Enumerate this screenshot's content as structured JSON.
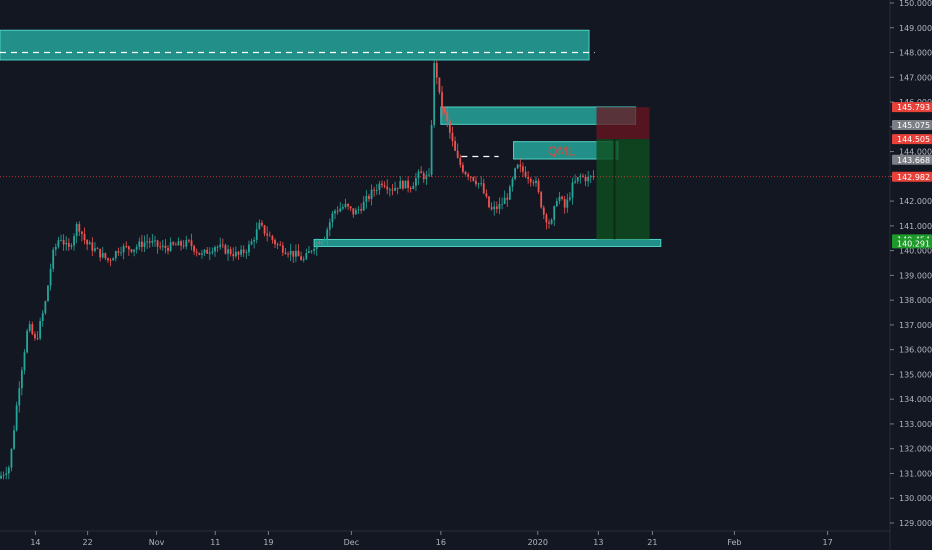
{
  "chart_data": {
    "type": "candlestick",
    "ylim": [
      129.0,
      150.0
    ],
    "y_ticks": [
      "150.000",
      "149.000",
      "148.000",
      "147.000",
      "146.000",
      "145.000",
      "144.000",
      "143.000",
      "142.000",
      "141.000",
      "140.000",
      "139.000",
      "138.000",
      "137.000",
      "136.000",
      "135.000",
      "134.000",
      "133.000",
      "132.000",
      "131.000",
      "130.000",
      "129.000"
    ],
    "x_ticks": [
      {
        "label": "14",
        "pos": 0.038
      },
      {
        "label": "22",
        "pos": 0.094
      },
      {
        "label": "Nov",
        "pos": 0.168
      },
      {
        "label": "11",
        "pos": 0.231
      },
      {
        "label": "19",
        "pos": 0.288
      },
      {
        "label": "Dec",
        "pos": 0.377
      },
      {
        "label": "16",
        "pos": 0.473
      },
      {
        "label": "2020",
        "pos": 0.577
      },
      {
        "label": "13",
        "pos": 0.642
      },
      {
        "label": "21",
        "pos": 0.7
      },
      {
        "label": "Feb",
        "pos": 0.788
      },
      {
        "label": "17",
        "pos": 0.888
      }
    ],
    "price_path": [
      [
        0.0,
        130.8
      ],
      [
        0.012,
        131.3
      ],
      [
        0.022,
        134.5
      ],
      [
        0.032,
        137.0
      ],
      [
        0.04,
        136.3
      ],
      [
        0.05,
        137.8
      ],
      [
        0.058,
        139.8
      ],
      [
        0.066,
        140.6
      ],
      [
        0.075,
        140.0
      ],
      [
        0.085,
        141.1
      ],
      [
        0.094,
        140.3
      ],
      [
        0.105,
        140.0
      ],
      [
        0.118,
        139.6
      ],
      [
        0.13,
        140.1
      ],
      [
        0.145,
        140.1
      ],
      [
        0.16,
        140.4
      ],
      [
        0.175,
        140.1
      ],
      [
        0.19,
        140.2
      ],
      [
        0.205,
        140.3
      ],
      [
        0.218,
        139.8
      ],
      [
        0.232,
        140.2
      ],
      [
        0.245,
        140.0
      ],
      [
        0.258,
        139.8
      ],
      [
        0.27,
        140.2
      ],
      [
        0.28,
        141.0
      ],
      [
        0.29,
        140.6
      ],
      [
        0.3,
        140.2
      ],
      [
        0.31,
        140.0
      ],
      [
        0.32,
        139.8
      ],
      [
        0.328,
        139.6
      ],
      [
        0.338,
        140.2
      ],
      [
        0.35,
        140.6
      ],
      [
        0.36,
        141.6
      ],
      [
        0.372,
        141.8
      ],
      [
        0.382,
        141.5
      ],
      [
        0.392,
        141.9
      ],
      [
        0.402,
        142.4
      ],
      [
        0.412,
        142.8
      ],
      [
        0.422,
        142.5
      ],
      [
        0.432,
        142.7
      ],
      [
        0.442,
        142.6
      ],
      [
        0.452,
        143.1
      ],
      [
        0.462,
        142.9
      ],
      [
        0.468,
        147.8
      ],
      [
        0.474,
        146.0
      ],
      [
        0.48,
        145.4
      ],
      [
        0.486,
        144.5
      ],
      [
        0.492,
        143.7
      ],
      [
        0.5,
        143.2
      ],
      [
        0.508,
        143.0
      ],
      [
        0.518,
        142.6
      ],
      [
        0.528,
        141.6
      ],
      [
        0.538,
        141.8
      ],
      [
        0.548,
        142.3
      ],
      [
        0.556,
        143.4
      ],
      [
        0.566,
        143.1
      ],
      [
        0.576,
        142.8
      ],
      [
        0.585,
        141.5
      ],
      [
        0.593,
        141.0
      ],
      [
        0.6,
        142.3
      ],
      [
        0.608,
        141.7
      ],
      [
        0.616,
        142.6
      ],
      [
        0.624,
        143.0
      ],
      [
        0.632,
        142.9
      ],
      [
        0.638,
        142.98
      ]
    ],
    "current_price": "142.982",
    "zones": [
      {
        "name": "supply-zone-top",
        "price_top": 148.9,
        "price_bottom": 147.7,
        "x0": 0.0,
        "x1": 0.632
      },
      {
        "name": "supply-zone-mid",
        "price_top": 145.8,
        "price_bottom": 145.1,
        "x0": 0.473,
        "x1": 0.682
      },
      {
        "name": "qml-zone",
        "price_top": 144.4,
        "price_bottom": 143.7,
        "x0": 0.551,
        "x1": 0.663
      },
      {
        "name": "demand-zone",
        "price_top": 140.45,
        "price_bottom": 140.29,
        "x0": 0.337,
        "x1": 0.709
      }
    ],
    "qml_label": "QML",
    "dashed_levels": [
      {
        "price": 148.0,
        "x0": 0.0,
        "x1": 0.638
      },
      {
        "price": 143.8,
        "x0": 0.495,
        "x1": 0.535
      }
    ],
    "position": {
      "entry": 144.505,
      "stop": 145.793,
      "target": 140.454,
      "x0": 0.64,
      "x1": 0.697
    },
    "price_badges": [
      {
        "label": "145.793",
        "price": 145.793,
        "color": "#e8413a"
      },
      {
        "label": "145.075",
        "price": 145.075,
        "color": "#7d7f86"
      },
      {
        "label": "144.505",
        "price": 144.505,
        "color": "#e8413a"
      },
      {
        "label": "143.668",
        "price": 143.668,
        "color": "#7d7f86"
      },
      {
        "label": "142.982",
        "price": 142.982,
        "color": "#e8413a"
      },
      {
        "label": "140.454",
        "price": 140.454,
        "color": "#1e9a2a"
      },
      {
        "label": "140.291",
        "price": 140.291,
        "color": "#1e9a2a"
      }
    ],
    "colors": {
      "up": "#26a69a",
      "down": "#ef5350",
      "zone": "#26a69a",
      "background": "#131722"
    }
  }
}
